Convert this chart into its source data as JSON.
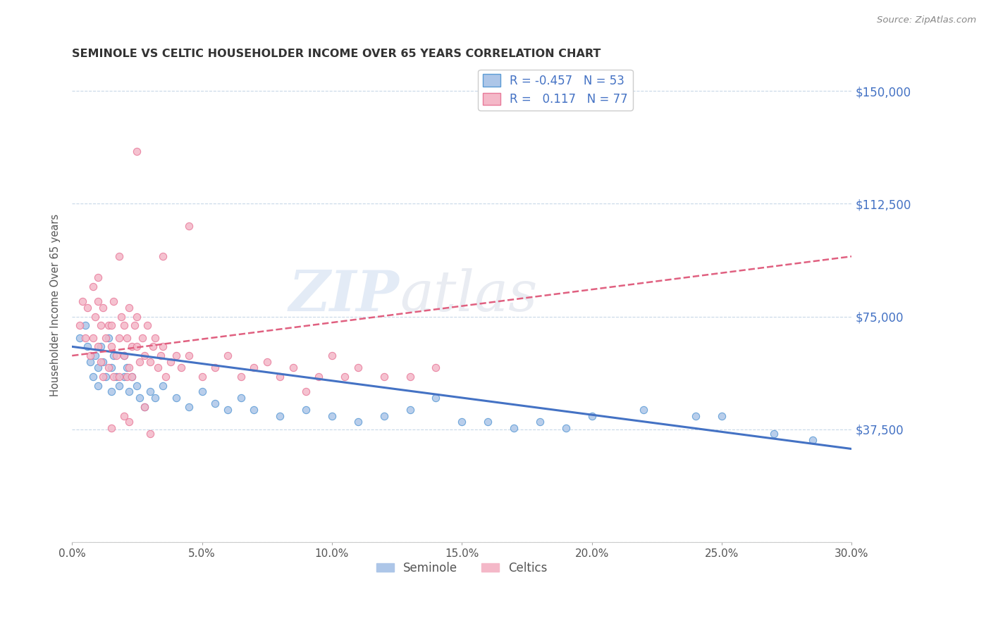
{
  "title": "SEMINOLE VS CELTIC HOUSEHOLDER INCOME OVER 65 YEARS CORRELATION CHART",
  "source_text": "Source: ZipAtlas.com",
  "ylabel": "Householder Income Over 65 years",
  "xlim": [
    0.0,
    30.0
  ],
  "ylim": [
    0,
    157500
  ],
  "yticks": [
    0,
    37500,
    75000,
    112500,
    150000
  ],
  "ytick_labels": [
    "",
    "$37,500",
    "$75,000",
    "$112,500",
    "$150,000"
  ],
  "xticks": [
    0.0,
    5.0,
    10.0,
    15.0,
    20.0,
    25.0,
    30.0
  ],
  "xtick_labels": [
    "0.0%",
    "5.0%",
    "10.0%",
    "15.0%",
    "20.0%",
    "25.0%",
    "30.0%"
  ],
  "seminole_color": "#adc6e8",
  "celtics_color": "#f4b8c8",
  "seminole_edge_color": "#5b9bd5",
  "celtics_edge_color": "#e87a9a",
  "seminole_line_color": "#4472c4",
  "celtics_line_color": "#e06080",
  "watermark_zip": "ZIP",
  "watermark_atlas": "atlas",
  "legend_r_seminole": "-0.457",
  "legend_n_seminole": "53",
  "legend_r_celtics": "0.117",
  "legend_n_celtics": "77",
  "seminole_x": [
    0.3,
    0.5,
    0.6,
    0.7,
    0.8,
    0.9,
    1.0,
    1.0,
    1.1,
    1.2,
    1.3,
    1.4,
    1.5,
    1.5,
    1.6,
    1.7,
    1.8,
    2.0,
    2.0,
    2.1,
    2.2,
    2.3,
    2.5,
    2.6,
    2.8,
    3.0,
    3.2,
    3.5,
    4.0,
    4.5,
    5.0,
    5.5,
    6.0,
    6.5,
    7.0,
    8.0,
    9.0,
    10.0,
    11.0,
    12.0,
    13.0,
    14.0,
    15.0,
    16.0,
    17.0,
    18.0,
    19.0,
    20.0,
    22.0,
    24.0,
    25.0,
    27.0,
    28.5
  ],
  "seminole_y": [
    68000,
    72000,
    65000,
    60000,
    55000,
    62000,
    58000,
    52000,
    65000,
    60000,
    55000,
    68000,
    58000,
    50000,
    62000,
    55000,
    52000,
    62000,
    55000,
    58000,
    50000,
    55000,
    52000,
    48000,
    45000,
    50000,
    48000,
    52000,
    48000,
    45000,
    50000,
    46000,
    44000,
    48000,
    44000,
    42000,
    44000,
    42000,
    40000,
    42000,
    44000,
    48000,
    40000,
    40000,
    38000,
    40000,
    38000,
    42000,
    44000,
    42000,
    42000,
    36000,
    34000
  ],
  "celtics_x": [
    0.3,
    0.4,
    0.5,
    0.6,
    0.7,
    0.8,
    0.8,
    0.9,
    1.0,
    1.0,
    1.0,
    1.1,
    1.1,
    1.2,
    1.2,
    1.3,
    1.4,
    1.4,
    1.5,
    1.5,
    1.6,
    1.6,
    1.7,
    1.8,
    1.8,
    1.9,
    2.0,
    2.0,
    2.1,
    2.1,
    2.2,
    2.2,
    2.3,
    2.3,
    2.4,
    2.5,
    2.5,
    2.6,
    2.7,
    2.8,
    2.9,
    3.0,
    3.1,
    3.2,
    3.3,
    3.4,
    3.5,
    3.6,
    3.8,
    4.0,
    4.2,
    4.5,
    5.0,
    5.5,
    6.0,
    6.5,
    7.0,
    7.5,
    8.0,
    8.5,
    9.0,
    9.5,
    10.0,
    10.5,
    11.0,
    12.0,
    13.0,
    14.0,
    2.5,
    3.5,
    4.5,
    1.8,
    2.8,
    2.0,
    1.5,
    2.2,
    3.0
  ],
  "celtics_y": [
    72000,
    80000,
    68000,
    78000,
    62000,
    85000,
    68000,
    75000,
    80000,
    65000,
    88000,
    72000,
    60000,
    78000,
    55000,
    68000,
    72000,
    58000,
    65000,
    72000,
    80000,
    55000,
    62000,
    68000,
    55000,
    75000,
    72000,
    62000,
    68000,
    55000,
    78000,
    58000,
    65000,
    55000,
    72000,
    65000,
    75000,
    60000,
    68000,
    62000,
    72000,
    60000,
    65000,
    68000,
    58000,
    62000,
    65000,
    55000,
    60000,
    62000,
    58000,
    62000,
    55000,
    58000,
    62000,
    55000,
    58000,
    60000,
    55000,
    58000,
    50000,
    55000,
    62000,
    55000,
    58000,
    55000,
    55000,
    58000,
    130000,
    95000,
    105000,
    95000,
    45000,
    42000,
    38000,
    40000,
    36000
  ]
}
